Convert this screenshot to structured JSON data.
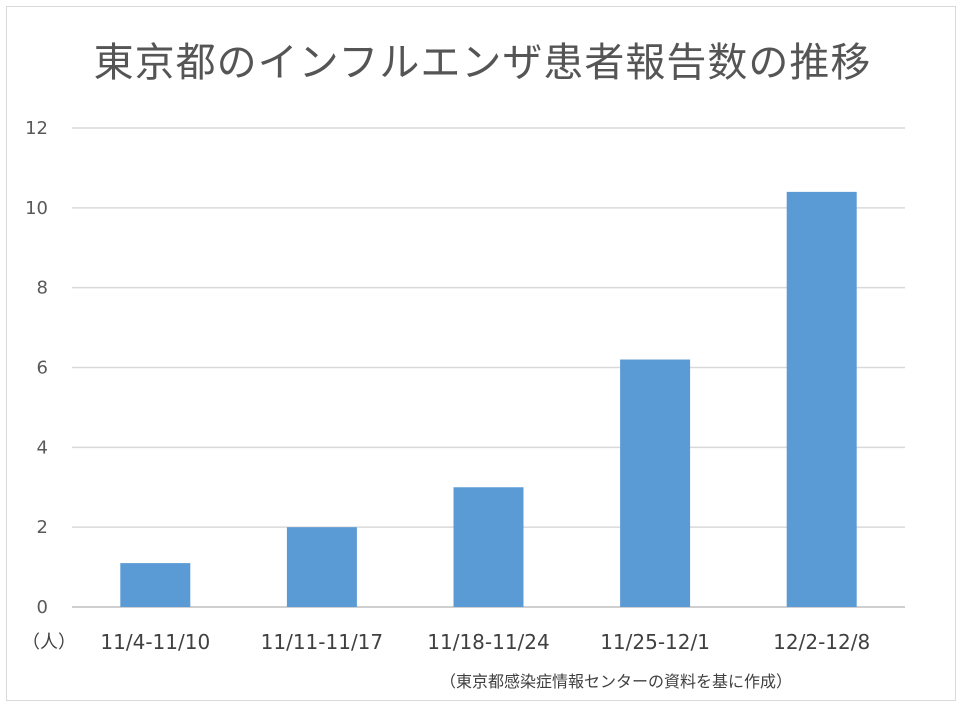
{
  "chart_data": {
    "type": "bar",
    "title": "東京都のインフルエンザ患者報告数の推移",
    "categories": [
      "11/4-11/10",
      "11/11-11/17",
      "11/18-11/24",
      "11/25-12/1",
      "12/2-12/8"
    ],
    "values": [
      1.1,
      2.0,
      3.0,
      6.2,
      10.4
    ],
    "ylim": [
      0,
      12
    ],
    "yticks": [
      0,
      2,
      4,
      6,
      8,
      10,
      12
    ],
    "unit_label": "（人）",
    "source": "（東京都感染症情報センターの資料を基に作成）",
    "grid": true,
    "bar_color": "#5b9bd5"
  }
}
